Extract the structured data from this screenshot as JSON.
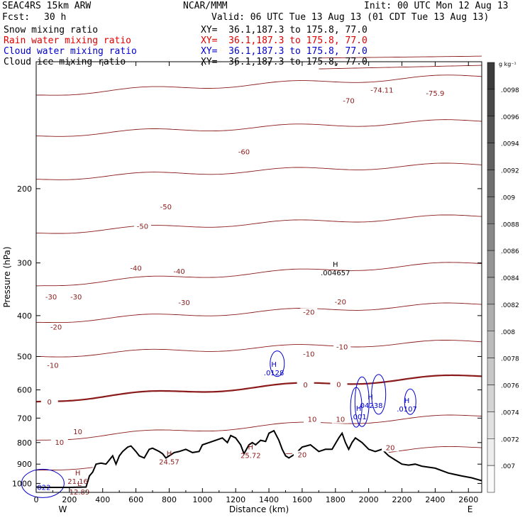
{
  "header": {
    "model": "SEAC4RS 15km ARW",
    "org": "NCAR/MMM",
    "init": "Init: 00 UTC Mon 12 Aug 13",
    "fcst_label": "Fcst:",
    "fcst_value": "30 h",
    "valid": "Valid: 06 UTC Tue 13 Aug 13 (01 CDT Tue 13 Aug 13)",
    "fields": [
      {
        "name": "Snow mixing ratio",
        "xy": "XY=  36.1,187.3 to 175.8, 77.0",
        "color": "#000000"
      },
      {
        "name": "Rain water mixing ratio",
        "xy": "XY=  36.1,187.3 to 175.8, 77.0",
        "color": "#e00000"
      },
      {
        "name": "Cloud water mixing ratio",
        "xy": "XY=  36.1,187.3 to 175.8, 77.0",
        "color": "#0000d0"
      },
      {
        "name": "Cloud ice mixing ratio",
        "xy": "XY=  36.1,187.3 to 175.8, 77.0",
        "color": "#000000"
      }
    ]
  },
  "chart_data": {
    "type": "contour-cross-section",
    "ylabel": "Pressure (hPa)",
    "xlabel": "Distance (km)",
    "x_ticks": [
      0,
      200,
      400,
      600,
      800,
      1000,
      1200,
      1400,
      1600,
      1800,
      2000,
      2200,
      2400,
      2600
    ],
    "y_ticks": [
      200,
      300,
      400,
      500,
      600,
      700,
      800,
      900,
      1000
    ],
    "xlim": [
      0,
      2680
    ],
    "ylim": [
      1050,
      100
    ],
    "endpoints": {
      "left": "W",
      "right": "E"
    },
    "temperature_contours_C": [
      -75.9,
      -74.1,
      -70,
      -60,
      -50,
      -40,
      -30,
      -20,
      -10,
      0,
      10,
      20
    ],
    "contour_labels": [
      {
        "text": "-70",
        "x": 1880,
        "p": 125
      },
      {
        "text": "-74.11",
        "x": 2080,
        "p": 118
      },
      {
        "text": "-75.9",
        "x": 2400,
        "p": 120
      },
      {
        "text": "-60",
        "x": 1250,
        "p": 165
      },
      {
        "text": "-50",
        "x": 780,
        "p": 223
      },
      {
        "text": "-50",
        "x": 640,
        "p": 248
      },
      {
        "text": "-40",
        "x": 600,
        "p": 312
      },
      {
        "text": "-40",
        "x": 860,
        "p": 317
      },
      {
        "text": "-30",
        "x": 90,
        "p": 365
      },
      {
        "text": "-30",
        "x": 240,
        "p": 365
      },
      {
        "text": "-30",
        "x": 890,
        "p": 376
      },
      {
        "text": "-20",
        "x": 120,
        "p": 430
      },
      {
        "text": "-20",
        "x": 1640,
        "p": 396
      },
      {
        "text": "-20",
        "x": 1830,
        "p": 375
      },
      {
        "text": "-10",
        "x": 100,
        "p": 530
      },
      {
        "text": "-10",
        "x": 1640,
        "p": 498
      },
      {
        "text": "-10",
        "x": 1840,
        "p": 479
      },
      {
        "text": "0",
        "x": 80,
        "p": 647
      },
      {
        "text": "0",
        "x": 1620,
        "p": 590
      },
      {
        "text": "0",
        "x": 1820,
        "p": 588
      },
      {
        "text": "10",
        "x": 1660,
        "p": 712
      },
      {
        "text": "10",
        "x": 1830,
        "p": 712
      },
      {
        "text": "10",
        "x": 250,
        "p": 762
      },
      {
        "text": "10",
        "x": 140,
        "p": 807
      },
      {
        "text": "20",
        "x": 1600,
        "p": 863
      },
      {
        "text": "20",
        "x": 2130,
        "p": 830
      }
    ],
    "extrema": [
      {
        "kind": "H",
        "value": ".004657",
        "x": 1800,
        "p": 310,
        "color": "#000000"
      },
      {
        "kind": "H",
        "value": ".0128",
        "x": 1430,
        "p": 535,
        "color": "#0000d0"
      },
      {
        "kind": "H",
        "value": ".001",
        "x": 1940,
        "p": 680,
        "color": "#0000d0"
      },
      {
        "kind": "H",
        "value": ".04238",
        "x": 2010,
        "p": 640,
        "color": "#0000d0"
      },
      {
        "kind": "H",
        "value": ".0107",
        "x": 2230,
        "p": 652,
        "color": "#0000d0"
      },
      {
        "kind": "H",
        "value": "24.57",
        "x": 800,
        "p": 870,
        "color": "#8b1a1a"
      },
      {
        "kind": "H",
        "value": "25.72",
        "x": 1290,
        "p": 840,
        "color": "#8b1a1a"
      },
      {
        "kind": "H",
        "value": "21.16",
        "x": 250,
        "p": 968,
        "color": "#8b1a1a"
      },
      {
        "kind": "L",
        "value": "12.89",
        "x": 260,
        "p": 1025,
        "color": "#8b1a1a"
      },
      {
        "kind": "",
        "value": ".022",
        "x": 40,
        "p": 1000,
        "color": "#0000d0"
      }
    ],
    "terrain_pressure": [
      [
        0,
        1020
      ],
      [
        50,
        1022
      ],
      [
        200,
        1022
      ],
      [
        300,
        1020
      ],
      [
        320,
        960
      ],
      [
        340,
        940
      ],
      [
        360,
        900
      ],
      [
        390,
        895
      ],
      [
        420,
        900
      ],
      [
        440,
        880
      ],
      [
        460,
        860
      ],
      [
        480,
        900
      ],
      [
        500,
        860
      ],
      [
        520,
        840
      ],
      [
        550,
        820
      ],
      [
        570,
        815
      ],
      [
        600,
        840
      ],
      [
        620,
        860
      ],
      [
        650,
        870
      ],
      [
        680,
        830
      ],
      [
        700,
        825
      ],
      [
        740,
        840
      ],
      [
        760,
        850
      ],
      [
        780,
        870
      ],
      [
        800,
        860
      ],
      [
        830,
        845
      ],
      [
        860,
        840
      ],
      [
        900,
        830
      ],
      [
        940,
        845
      ],
      [
        980,
        840
      ],
      [
        1000,
        810
      ],
      [
        1040,
        800
      ],
      [
        1080,
        790
      ],
      [
        1120,
        780
      ],
      [
        1150,
        800
      ],
      [
        1170,
        770
      ],
      [
        1200,
        780
      ],
      [
        1230,
        810
      ],
      [
        1250,
        850
      ],
      [
        1280,
        810
      ],
      [
        1300,
        800
      ],
      [
        1320,
        810
      ],
      [
        1350,
        790
      ],
      [
        1380,
        795
      ],
      [
        1400,
        760
      ],
      [
        1430,
        750
      ],
      [
        1460,
        790
      ],
      [
        1480,
        830
      ],
      [
        1500,
        860
      ],
      [
        1520,
        870
      ],
      [
        1560,
        850
      ],
      [
        1600,
        820
      ],
      [
        1650,
        810
      ],
      [
        1700,
        840
      ],
      [
        1740,
        830
      ],
      [
        1780,
        830
      ],
      [
        1820,
        780
      ],
      [
        1840,
        760
      ],
      [
        1860,
        800
      ],
      [
        1880,
        830
      ],
      [
        1900,
        800
      ],
      [
        1920,
        780
      ],
      [
        1960,
        800
      ],
      [
        2000,
        830
      ],
      [
        2040,
        840
      ],
      [
        2080,
        830
      ],
      [
        2120,
        860
      ],
      [
        2160,
        880
      ],
      [
        2200,
        900
      ],
      [
        2240,
        905
      ],
      [
        2280,
        900
      ],
      [
        2320,
        910
      ],
      [
        2400,
        920
      ],
      [
        2480,
        945
      ],
      [
        2560,
        960
      ],
      [
        2620,
        970
      ],
      [
        2660,
        980
      ],
      [
        2680,
        985
      ]
    ],
    "freezing_level_note": "0 C isotherm drawn thick"
  }
}
